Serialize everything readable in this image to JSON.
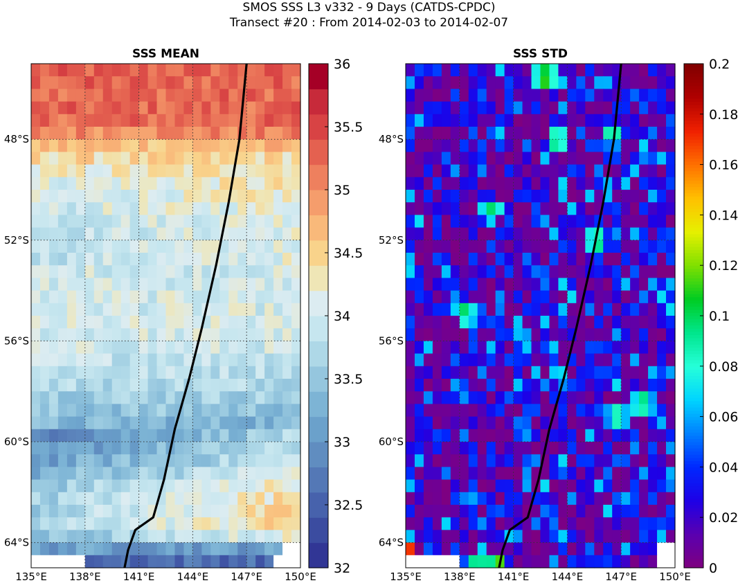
{
  "figure": {
    "title_line1": "SMOS SSS L3 v332 - 9 Days (CATDS-CPDC)",
    "title_line2": "Transect #20 : From 2014-02-03 to 2014-02-07"
  },
  "chart_data": [
    {
      "type": "heatmap",
      "title": "SSS MEAN",
      "x_ticks": [
        "135°E",
        "138°E",
        "141°E",
        "144°E",
        "147°E",
        "150°E"
      ],
      "x_tick_values": [
        135,
        138,
        141,
        144,
        147,
        150
      ],
      "y_ticks": [
        "48°S",
        "52°S",
        "56°S",
        "60°S",
        "64°S"
      ],
      "y_tick_values": [
        -48,
        -52,
        -56,
        -60,
        -64
      ],
      "xlim": [
        135,
        150
      ],
      "ylim": [
        -65,
        -45
      ],
      "grid": true,
      "colorbar": {
        "ticks": [
          "32",
          "32.5",
          "33",
          "33.5",
          "34",
          "34.5",
          "35",
          "35.5",
          "36"
        ],
        "range": [
          32,
          36
        ],
        "levels": 20,
        "colors": [
          "#313695",
          "#3b4ca0",
          "#4762ac",
          "#5478b6",
          "#608dc0",
          "#6ba1cb",
          "#7db4d5",
          "#95c6de",
          "#aed8e7",
          "#c6e6ef",
          "#dcecf1",
          "#efe6b6",
          "#f9d38b",
          "#f9b97a",
          "#f59d6c",
          "#ee805e",
          "#e46150",
          "#d84344",
          "#c72a3a",
          "#a50026"
        ]
      },
      "zonal_profile": {
        "lat": [
          -45,
          -47.5,
          -48.5,
          -50,
          -52,
          -54,
          -56,
          -58,
          -59.5,
          -60.5,
          -62,
          -63.5,
          -64.5,
          -65
        ],
        "sss": [
          35.35,
          35.3,
          34.5,
          34.15,
          33.95,
          34.0,
          34.0,
          33.7,
          33.2,
          33.35,
          34.0,
          34.1,
          32.7,
          32.4
        ]
      },
      "nodata_rows": [
        {
          "lat_top": -64.5,
          "lat_bottom": -65,
          "lon_from": 135,
          "lon_to": 138.2
        },
        {
          "lat_top": -64.5,
          "lat_bottom": -65,
          "lon_from": 148.7,
          "lon_to": 150
        },
        {
          "lat_top": -64,
          "lat_bottom": -64.5,
          "lon_from": 149.2,
          "lon_to": 150
        }
      ],
      "transect": {
        "lon": [
          147.0,
          146.6,
          146.0,
          145.3,
          144.5,
          143.8,
          143.0,
          142.4,
          141.8,
          140.8,
          140.4,
          140.2
        ],
        "lat": [
          -45.0,
          -48.0,
          -50.5,
          -53.0,
          -55.5,
          -57.5,
          -59.5,
          -61.5,
          -63.0,
          -63.5,
          -64.3,
          -65.0
        ]
      }
    },
    {
      "type": "heatmap",
      "title": "SSS STD",
      "x_ticks": [
        "135°E",
        "138°E",
        "141°E",
        "144°E",
        "147°E",
        "150°E"
      ],
      "x_tick_values": [
        135,
        138,
        141,
        144,
        147,
        150
      ],
      "y_ticks": [
        "48°S",
        "52°S",
        "56°S",
        "60°S",
        "64°S"
      ],
      "y_tick_values": [
        -48,
        -52,
        -56,
        -60,
        -64
      ],
      "xlim": [
        135,
        150
      ],
      "ylim": [
        -65,
        -45
      ],
      "grid": true,
      "colorbar": {
        "ticks": [
          "0",
          "0.02",
          "0.04",
          "0.06",
          "0.08",
          "0.1",
          "0.12",
          "0.14",
          "0.16",
          "0.18",
          "0.2"
        ],
        "range": [
          0,
          0.2
        ],
        "colors": [
          "#7f007f",
          "#5a00b0",
          "#1e00e6",
          "#0028ff",
          "#0080ff",
          "#00d4ff",
          "#26ffd9",
          "#00e68c",
          "#00cc22",
          "#80e000",
          "#e6f000",
          "#ffc000",
          "#ff7000",
          "#f02000",
          "#b00000",
          "#800000"
        ]
      },
      "hotspots": [
        {
          "lon": 142.8,
          "lat": -45.5,
          "value": 0.12
        },
        {
          "lon": 143.4,
          "lat": -48.0,
          "value": 0.1
        },
        {
          "lon": 146.5,
          "lat": -47.8,
          "value": 0.09
        },
        {
          "lon": 139.8,
          "lat": -50.8,
          "value": 0.1
        },
        {
          "lon": 145.6,
          "lat": -52.0,
          "value": 0.1
        },
        {
          "lon": 138.3,
          "lat": -54.9,
          "value": 0.1
        },
        {
          "lon": 148.2,
          "lat": -58.5,
          "value": 0.1
        },
        {
          "lon": 146.8,
          "lat": -59.0,
          "value": 0.09
        }
      ],
      "nodata_rows": [
        {
          "lat_top": -64,
          "lat_bottom": -64.5,
          "lon_from": 149.2,
          "lon_to": 150
        },
        {
          "lat_top": -64.5,
          "lat_bottom": -65,
          "lon_from": 135,
          "lon_to": 138.2
        },
        {
          "lat_top": -64.5,
          "lat_bottom": -65,
          "lon_from": 149.2,
          "lon_to": 150
        }
      ],
      "transect": {
        "lon": [
          147.0,
          146.6,
          146.0,
          145.3,
          144.5,
          143.8,
          143.0,
          142.4,
          141.8,
          140.8,
          140.4,
          140.2
        ],
        "lat": [
          -45.0,
          -48.0,
          -50.5,
          -53.0,
          -55.5,
          -57.5,
          -59.5,
          -61.5,
          -63.0,
          -63.5,
          -64.3,
          -65.0
        ]
      }
    }
  ]
}
